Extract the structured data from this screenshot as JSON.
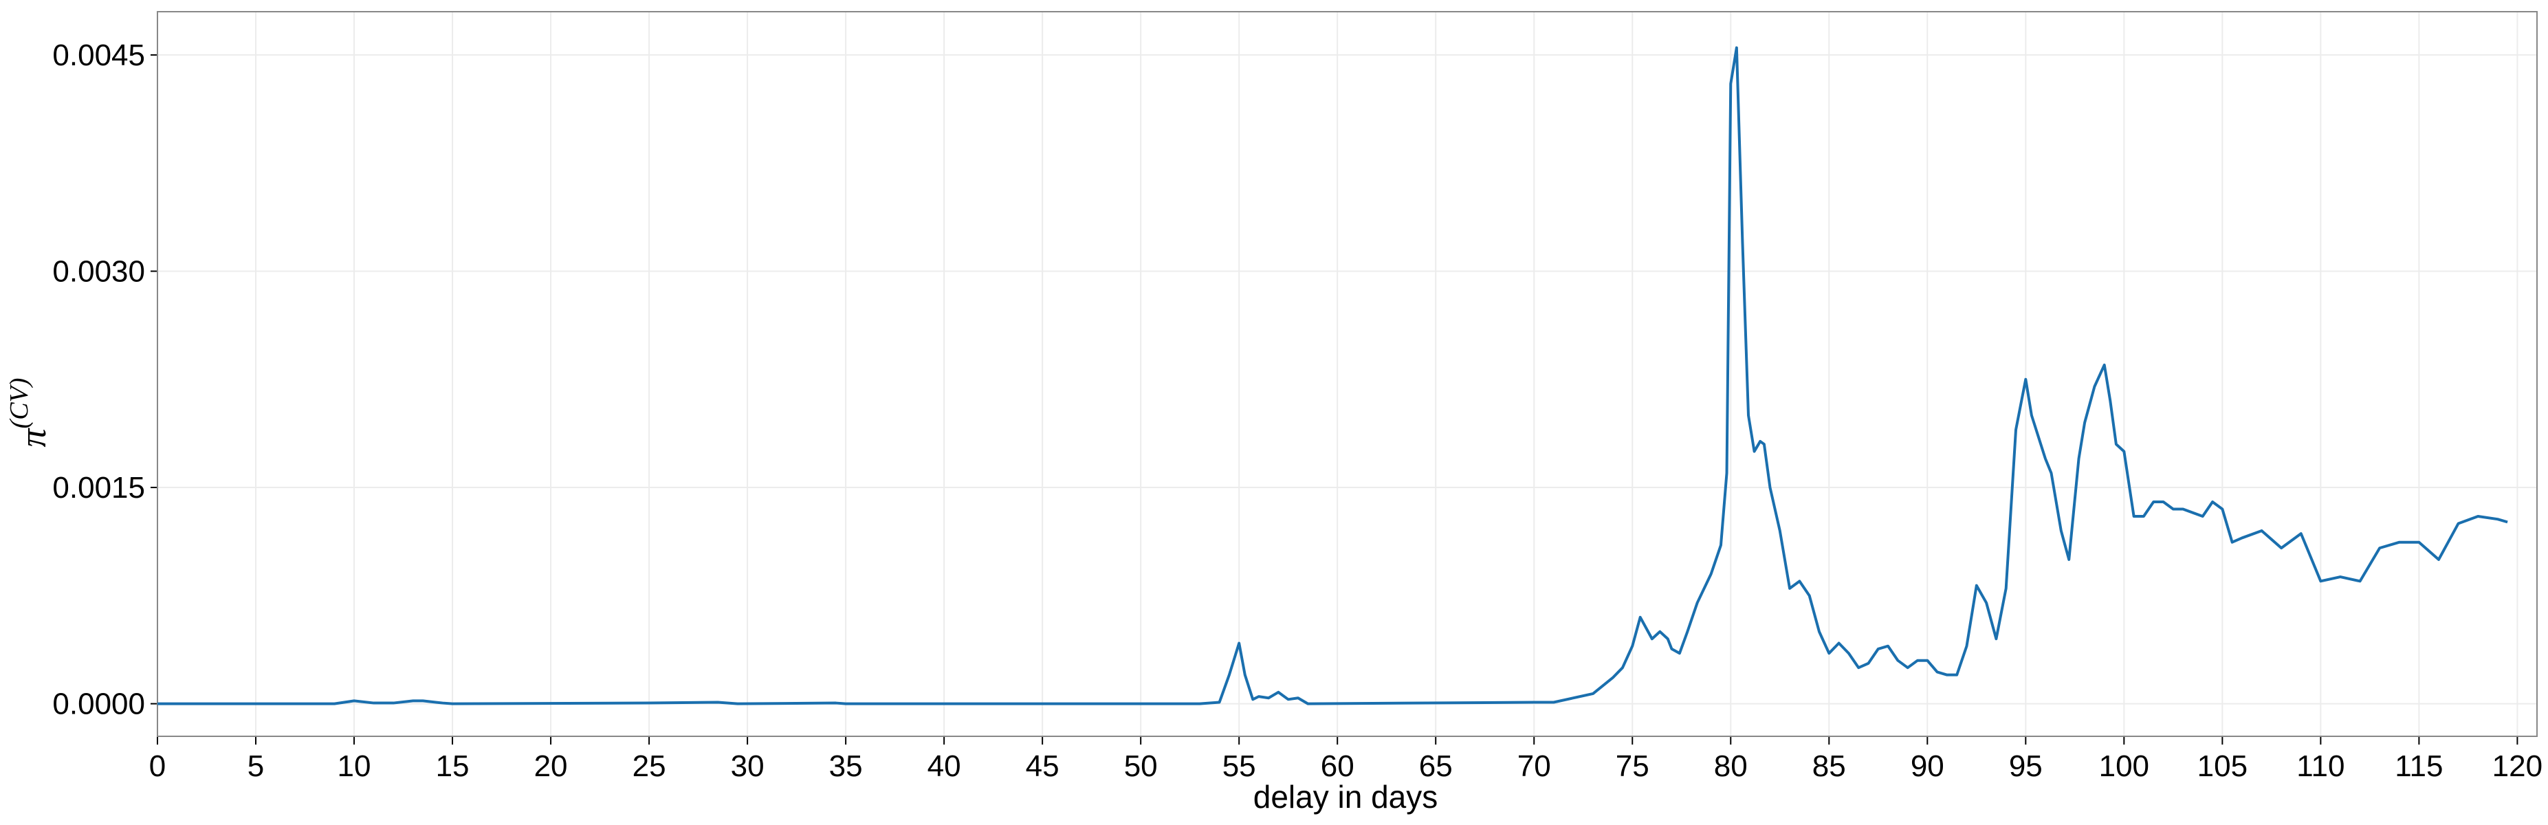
{
  "chart_data": {
    "type": "line",
    "x_label": "delay in days",
    "y_label": {
      "base": "π",
      "sup": "(CV)"
    },
    "grid": true,
    "xlim": [
      0,
      121
    ],
    "ylim": [
      -0.000226,
      0.0048
    ],
    "xticks": [
      0,
      5,
      10,
      15,
      20,
      25,
      30,
      35,
      40,
      45,
      50,
      55,
      60,
      65,
      70,
      75,
      80,
      85,
      90,
      95,
      100,
      105,
      110,
      115,
      120
    ],
    "yticks": [
      {
        "value": 0,
        "label": "0.0000"
      },
      {
        "value": 0.0015,
        "label": "0.0015"
      },
      {
        "value": 0.003,
        "label": "0.0030"
      },
      {
        "value": 0.0045,
        "label": "0.0045"
      }
    ],
    "series": [
      {
        "color": "#1a6fae",
        "x": [
          0,
          9,
          9.5,
          10,
          11,
          12,
          13,
          13.5,
          14.5,
          15,
          25,
          28.5,
          29.5,
          34.5,
          35,
          53,
          54,
          54.5,
          55,
          55.3,
          55.7,
          56,
          56.5,
          57,
          57.5,
          58,
          58.5,
          70,
          71,
          72,
          73,
          74,
          74.5,
          75,
          75.4,
          75.8,
          76,
          76.4,
          76.8,
          77,
          77.4,
          77.8,
          78.3,
          79,
          79.5,
          79.8,
          80,
          80.3,
          80.6,
          80.9,
          81.2,
          81.5,
          81.7,
          82,
          82.5,
          83,
          83.5,
          84,
          84.5,
          85,
          85.5,
          86,
          86.5,
          87,
          87.5,
          88,
          88.5,
          89,
          89.5,
          90,
          90.5,
          91,
          91.5,
          92,
          92.5,
          93,
          93.5,
          94,
          94.5,
          95,
          95.3,
          96,
          96.3,
          96.8,
          97.2,
          97.7,
          98,
          98.5,
          99,
          99.3,
          99.6,
          100,
          100.5,
          101,
          101.5,
          102,
          102.5,
          103,
          104,
          104.5,
          105,
          105.5,
          106,
          107,
          108,
          109,
          110,
          111,
          112,
          113,
          114,
          115,
          116,
          117,
          118,
          119,
          119.5
        ],
        "values": [
          0,
          0,
          1e-05,
          2e-05,
          5e-06,
          5e-06,
          2e-05,
          2e-05,
          5e-06,
          0,
          5e-06,
          1e-05,
          0,
          5e-06,
          0,
          0,
          1e-05,
          0.0002,
          0.00042,
          0.0002,
          3e-05,
          5e-05,
          4e-05,
          8e-05,
          3e-05,
          4e-05,
          0,
          1e-05,
          1e-05,
          4e-05,
          7e-05,
          0.00018,
          0.00025,
          0.0004,
          0.0006,
          0.0005,
          0.00045,
          0.0005,
          0.00045,
          0.00038,
          0.00035,
          0.0005,
          0.0007,
          0.0009,
          0.0011,
          0.0016,
          0.0043,
          0.00455,
          0.0032,
          0.002,
          0.00175,
          0.00182,
          0.0018,
          0.0015,
          0.0012,
          0.0008,
          0.00085,
          0.00075,
          0.0005,
          0.00035,
          0.00042,
          0.00035,
          0.00025,
          0.00028,
          0.00038,
          0.0004,
          0.0003,
          0.00025,
          0.0003,
          0.0003,
          0.00022,
          0.0002,
          0.0002,
          0.0004,
          0.00082,
          0.0007,
          0.00045,
          0.0008,
          0.0019,
          0.00225,
          0.002,
          0.0017,
          0.0016,
          0.0012,
          0.001,
          0.0017,
          0.00195,
          0.0022,
          0.00235,
          0.0021,
          0.0018,
          0.00175,
          0.0013,
          0.0013,
          0.0014,
          0.0014,
          0.00135,
          0.00135,
          0.0013,
          0.0014,
          0.00135,
          0.00112,
          0.00115,
          0.0012,
          0.00108,
          0.00118,
          0.00085,
          0.00088,
          0.00085,
          0.00108,
          0.00112,
          0.00112,
          0.001,
          0.00125,
          0.0013,
          0.00128,
          0.00126
        ]
      }
    ]
  }
}
